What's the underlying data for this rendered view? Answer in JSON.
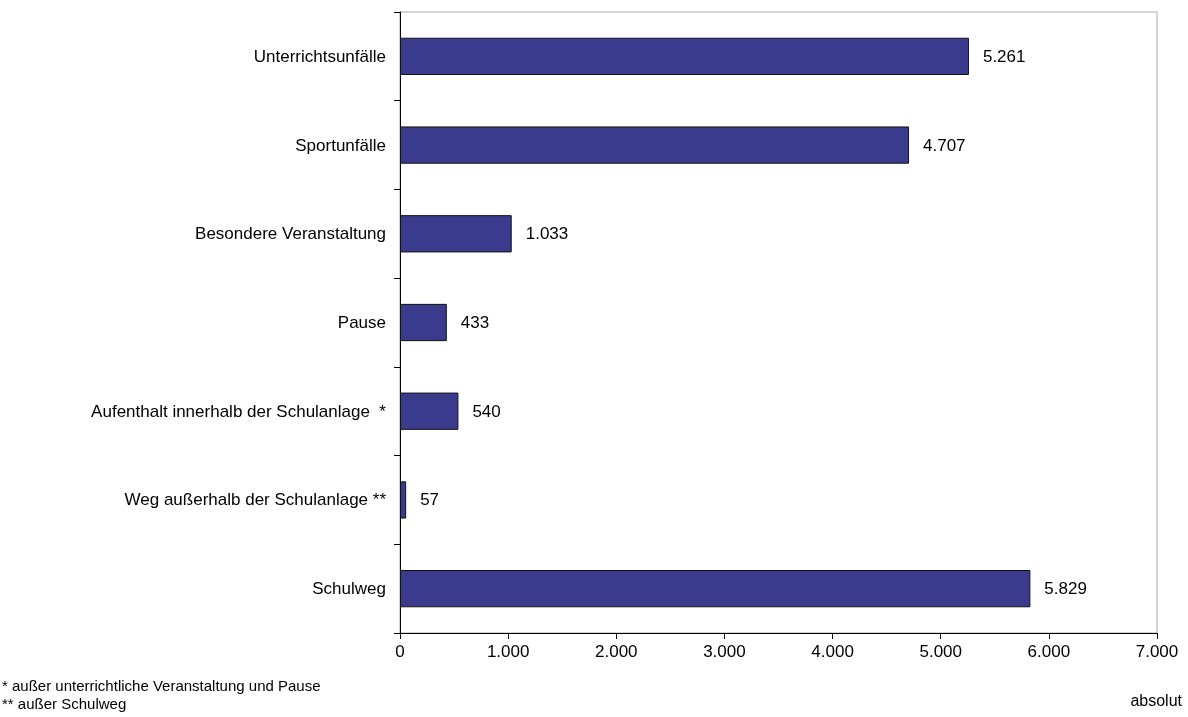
{
  "chart_data": {
    "type": "bar",
    "orientation": "horizontal",
    "xlabel": "absolut",
    "categories": [
      "Unterrichtsunfälle",
      "Sportunfälle",
      "Besondere Veranstaltung",
      "Pause",
      "Aufenthalt innerhalb der Schulanlage  *",
      "Weg außerhalb der Schulanlage **",
      "Schulweg"
    ],
    "values": [
      5261,
      4707,
      1033,
      433,
      540,
      57,
      5829
    ],
    "value_labels": [
      "5.261",
      "4.707",
      "1.033",
      "433",
      "540",
      "57",
      "5.829"
    ],
    "color": "#3b3b8e",
    "xlim": [
      0,
      7000
    ],
    "xticks": [
      0,
      {
        "value": 1000,
        "label": "1.000"
      },
      {
        "value": 2000,
        "label": "2.000"
      },
      {
        "value": 3000,
        "label": "3.000"
      },
      {
        "value": 4000,
        "label": "4.000"
      },
      {
        "value": 5000,
        "label": "5.000"
      },
      {
        "value": 6000,
        "label": "6.000"
      },
      {
        "value": 7000,
        "label": "7.000"
      }
    ],
    "grid": false,
    "annotations": [
      "* außer unterrichtliche Veranstaltung und Pause",
      "** außer Schulweg"
    ]
  }
}
